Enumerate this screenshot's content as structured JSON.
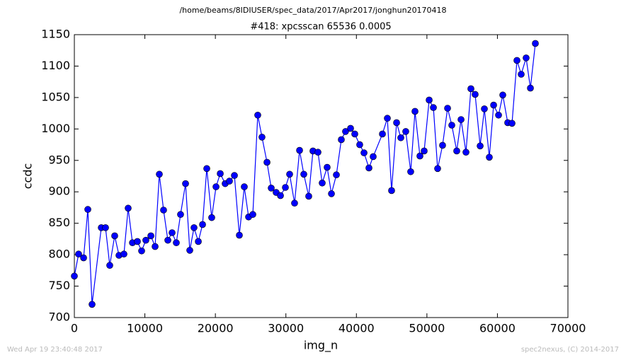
{
  "chart_data": {
    "type": "line",
    "title": "/home/beams/8IDIUSER/spec_data/2017/Apr2017/jonghun20170418",
    "subtitle": "#418: xpcsscan 65536 0.0005",
    "x_label": "img_n",
    "y_label": "ccdc",
    "footer_left": "Wed Apr 19 23:40:48 2017",
    "footer_right": "spec2nexus, (C) 2014-2017",
    "xlim": [
      0,
      70000
    ],
    "ylim": [
      700,
      1150
    ],
    "xticks": [
      0,
      10000,
      20000,
      30000,
      40000,
      50000,
      60000,
      70000
    ],
    "yticks": [
      700,
      750,
      800,
      850,
      900,
      950,
      1000,
      1050,
      1100,
      1150
    ],
    "grid": false,
    "x": [
      0,
      600,
      1310,
      1910,
      2510,
      3820,
      4420,
      5020,
      5720,
      6330,
      7030,
      7630,
      8240,
      8940,
      9540,
      10140,
      10850,
      11450,
      12050,
      12650,
      13260,
      13860,
      14460,
      15060,
      15770,
      16370,
      16970,
      17580,
      18180,
      18780,
      19480,
      20090,
      20690,
      21390,
      21990,
      22700,
      23400,
      24100,
      24710,
      25310,
      26010,
      26610,
      27320,
      27920,
      28620,
      29230,
      29930,
      30530,
      31230,
      31940,
      32540,
      33240,
      33840,
      34550,
      35150,
      35850,
      36460,
      37160,
      37860,
      38460,
      39170,
      39770,
      40470,
      41080,
      41780,
      42380,
      43690,
      44390,
      44990,
      45700,
      46300,
      47000,
      47700,
      48310,
      49010,
      49610,
      50320,
      50920,
      51520,
      52220,
      52930,
      53530,
      54230,
      54840,
      55540,
      56240,
      56840,
      57550,
      58150,
      58850,
      59460,
      60160,
      60760,
      61460,
      62070,
      62770,
      63370,
      64070,
      64680,
      65380
    ],
    "series": [
      {
        "name": "ccdc",
        "color": "#0000ff",
        "values": [
          766,
          801,
          795,
          872,
          721,
          843,
          843,
          783,
          830,
          799,
          801,
          874,
          819,
          821,
          806,
          823,
          830,
          813,
          928,
          871,
          823,
          835,
          819,
          864,
          913,
          807,
          843,
          821,
          848,
          937,
          859,
          908,
          929,
          913,
          917,
          926,
          831,
          908,
          860,
          864,
          1022,
          987,
          947,
          906,
          899,
          894,
          907,
          928,
          882,
          966,
          928,
          893,
          965,
          963,
          914,
          939,
          897,
          927,
          983,
          996,
          1001,
          992,
          975,
          962,
          938,
          956,
          992,
          1017,
          902,
          1010,
          986,
          996,
          932,
          1028,
          957,
          965,
          1046,
          1034,
          937,
          974,
          1033,
          1006,
          965,
          1015,
          963,
          1064,
          1055,
          973,
          1032,
          955,
          1038,
          1022,
          1054,
          1010,
          1009,
          1109,
          1087,
          1113,
          1065,
          1136
        ]
      }
    ]
  }
}
